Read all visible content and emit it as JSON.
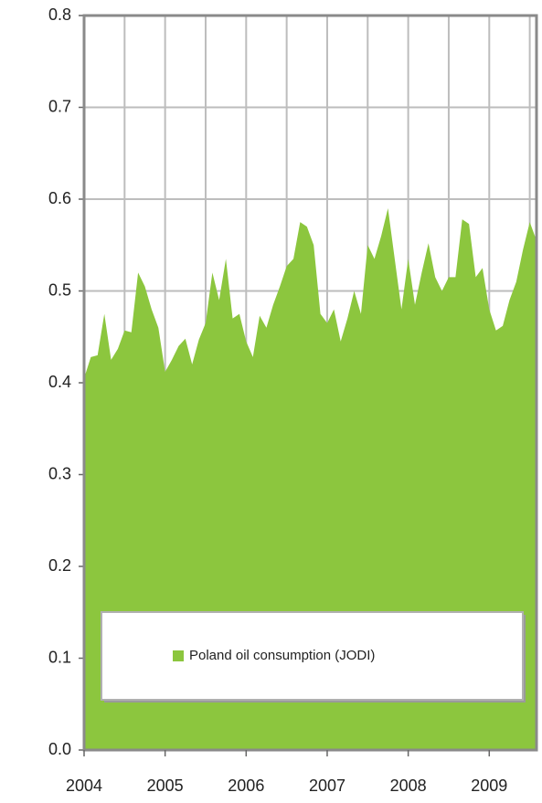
{
  "chart_data": {
    "type": "area",
    "categories": [
      "2004",
      null,
      null,
      null,
      null,
      null,
      null,
      null,
      null,
      null,
      null,
      null,
      "2005",
      null,
      null,
      null,
      null,
      null,
      null,
      null,
      null,
      null,
      null,
      null,
      "2006",
      null,
      null,
      null,
      null,
      null,
      null,
      null,
      null,
      null,
      null,
      null,
      "2007",
      null,
      null,
      null,
      null,
      null,
      null,
      null,
      null,
      null,
      null,
      null,
      "2008",
      null,
      null,
      null,
      null,
      null,
      null,
      null,
      null,
      null,
      null,
      null,
      "2009",
      null,
      null,
      null,
      null,
      null,
      null,
      null
    ],
    "series": [
      {
        "name": "Poland oil consumption (JODI)",
        "color": "#8cc63e",
        "values": [
          0.405,
          0.428,
          0.43,
          0.475,
          0.425,
          0.437,
          0.457,
          0.455,
          0.52,
          0.505,
          0.48,
          0.46,
          0.412,
          0.425,
          0.44,
          0.448,
          0.42,
          0.447,
          0.465,
          0.52,
          0.49,
          0.535,
          0.47,
          0.475,
          0.445,
          0.428,
          0.473,
          0.46,
          0.485,
          0.505,
          0.527,
          0.535,
          0.575,
          0.57,
          0.55,
          0.475,
          0.465,
          0.48,
          0.445,
          0.47,
          0.5,
          0.475,
          0.55,
          0.535,
          0.56,
          0.59,
          0.535,
          0.48,
          0.535,
          0.485,
          0.52,
          0.552,
          0.515,
          0.5,
          0.515,
          0.515,
          0.578,
          0.573,
          0.515,
          0.525,
          0.48,
          0.457,
          0.462,
          0.49,
          0.51,
          0.545,
          0.575,
          0.555
        ]
      }
    ],
    "ylim": [
      0,
      0.8
    ],
    "yticks": [
      {
        "value": 0,
        "label": "0.0"
      },
      0.1,
      0.2,
      0.3,
      0.4,
      0.5,
      0.6,
      0.7,
      0.8
    ],
    "grid": true,
    "legend": "bottom"
  }
}
